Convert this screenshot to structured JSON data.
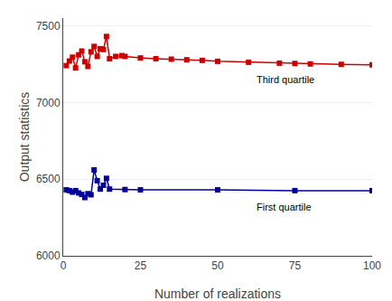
{
  "chart_data": {
    "type": "line",
    "xlabel": "Number of realizations",
    "ylabel": "Output statistics",
    "series": [
      {
        "name": "Third quartile",
        "color": "#cc0000",
        "marker": "square",
        "line_style": "solid",
        "x": [
          1,
          2,
          3,
          4,
          5,
          6,
          7,
          8,
          9,
          10,
          11,
          12,
          13,
          14,
          15,
          17,
          19,
          20,
          25,
          30,
          35,
          40,
          45,
          50,
          60,
          70,
          75,
          80,
          90,
          100
        ],
        "values": [
          7240,
          7270,
          7295,
          7225,
          7310,
          7335,
          7265,
          7235,
          7330,
          7365,
          7300,
          7350,
          7345,
          7430,
          7285,
          7300,
          7305,
          7300,
          7290,
          7285,
          7282,
          7278,
          7274,
          7268,
          7262,
          7256,
          7254,
          7251,
          7248,
          7245
        ]
      },
      {
        "name": "First quartile",
        "color": "#000099",
        "marker": "square",
        "line_style": "solid",
        "x": [
          1,
          2,
          3,
          4,
          5,
          6,
          7,
          8,
          9,
          10,
          11,
          12,
          13,
          14,
          15,
          20,
          25,
          50,
          75,
          100
        ],
        "values": [
          6430,
          6425,
          6415,
          6425,
          6410,
          6400,
          6380,
          6405,
          6398,
          6560,
          6490,
          6435,
          6460,
          6505,
          6435,
          6432,
          6430,
          6430,
          6425,
          6425
        ]
      }
    ],
    "annotations": [
      {
        "text": "Third quartile",
        "x": 62,
        "y": 7195
      },
      {
        "text": "First quartile",
        "x": 62,
        "y": 6365
      }
    ],
    "xlim": [
      0,
      100
    ],
    "ylim": [
      6000,
      7550
    ],
    "xticks": [
      0,
      25,
      50,
      75,
      100
    ],
    "yticks": [
      6000,
      6500,
      7000,
      7500
    ],
    "grid": "y"
  }
}
